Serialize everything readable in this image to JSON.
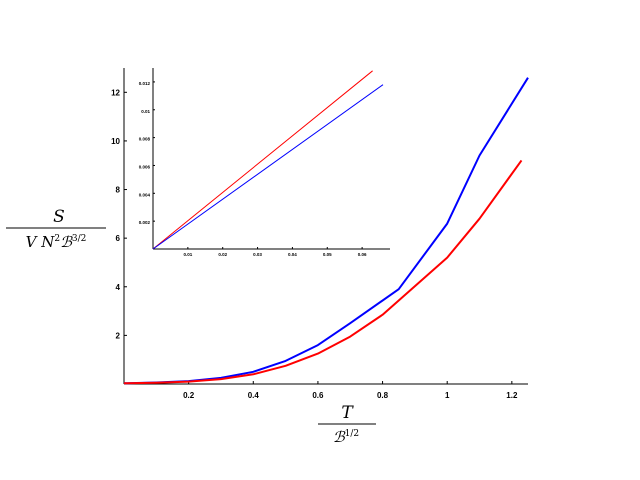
{
  "chart_data": [
    {
      "type": "line",
      "xlim": [
        0,
        1.25
      ],
      "ylim": [
        0,
        13
      ],
      "xticks": [
        "0.2",
        "0.4",
        "0.6",
        "0.8",
        "1",
        "1.2"
      ],
      "xtick_values": [
        0.2,
        0.4,
        0.6,
        0.8,
        1.0,
        1.2
      ],
      "yticks": [
        "2",
        "4",
        "6",
        "8",
        "10",
        "12"
      ],
      "ytick_values": [
        2,
        4,
        6,
        8,
        10,
        12
      ],
      "ylabel": {
        "num": "S",
        "den_lead": "V N",
        "den_sup1": "2",
        "den_b": "ℬ",
        "den_sup2": "3/2"
      },
      "xlabel": {
        "num": "T",
        "den_b": "ℬ",
        "den_sup": "1/2"
      },
      "grid": false,
      "legend": "none",
      "series": [
        {
          "color": "#0000ff",
          "x": [
            0,
            0.1,
            0.2,
            0.3,
            0.4,
            0.5,
            0.6,
            0.7,
            0.85,
            1.0,
            1.1,
            1.25
          ],
          "y": [
            0.03,
            0.06,
            0.12,
            0.25,
            0.5,
            0.95,
            1.6,
            2.5,
            3.9,
            6.6,
            9.4,
            12.6
          ]
        },
        {
          "color": "#ff0000",
          "x": [
            0,
            0.1,
            0.2,
            0.3,
            0.4,
            0.5,
            0.6,
            0.7,
            0.8,
            1.0,
            1.1,
            1.23
          ],
          "y": [
            0.03,
            0.05,
            0.1,
            0.2,
            0.4,
            0.75,
            1.25,
            1.95,
            2.85,
            5.2,
            6.8,
            9.2
          ]
        }
      ]
    },
    {
      "type": "line",
      "role": "inset",
      "xlim": [
        0,
        0.068
      ],
      "ylim": [
        0,
        0.013
      ],
      "xticks": [
        "0.01",
        "0.02",
        "0.03",
        "0.04",
        "0.05",
        "0.06"
      ],
      "xtick_values": [
        0.01,
        0.02,
        0.03,
        0.04,
        0.05,
        0.06
      ],
      "yticks": [
        "0.002",
        "0.004",
        "0.006",
        "0.008",
        "0.01",
        "0.012"
      ],
      "ytick_values": [
        0.002,
        0.004,
        0.006,
        0.008,
        0.01,
        0.012
      ],
      "grid": false,
      "legend": "none",
      "series": [
        {
          "color": "#ff0000",
          "x": [
            0,
            0.063
          ],
          "y": [
            0,
            0.0128
          ]
        },
        {
          "color": "#0000ff",
          "x": [
            0,
            0.066
          ],
          "y": [
            0,
            0.0118
          ]
        }
      ]
    }
  ]
}
